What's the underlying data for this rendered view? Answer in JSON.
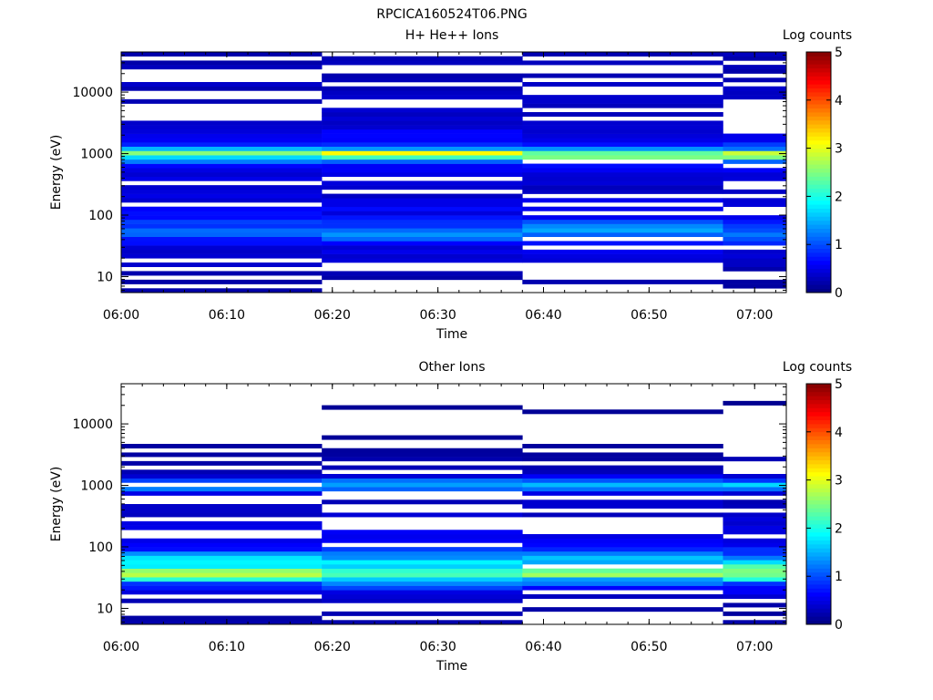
{
  "figure": {
    "title": "RPCICA160524T06.PNG"
  },
  "chart_data": [
    {
      "type": "heatmap",
      "title": "H+ He++ Ions",
      "xlabel": "Time",
      "ylabel": "Energy (eV)",
      "y_scale": "log",
      "xlim": [
        "06:00",
        "07:03"
      ],
      "ylim": [
        5.5,
        45000
      ],
      "x_ticks": [
        "06:00",
        "06:10",
        "06:20",
        "06:30",
        "06:40",
        "06:50",
        "07:00"
      ],
      "y_ticks": [
        "10",
        "100",
        "1000",
        "10000"
      ],
      "grid": false,
      "colorbar": {
        "title": "Log counts",
        "range": [
          0,
          5
        ],
        "ticks": [
          "0",
          "1",
          "2",
          "3",
          "4",
          "5"
        ],
        "colormap": "jet"
      },
      "time_bins_min": 19,
      "band_profile": [
        {
          "energy_eV": 8,
          "log_counts": 0.2
        },
        {
          "energy_eV": 15,
          "log_counts": 0.3
        },
        {
          "energy_eV": 30,
          "log_counts": 0.5
        },
        {
          "energy_eV": 55,
          "log_counts": 1.3
        },
        {
          "energy_eV": 100,
          "log_counts": 0.6
        },
        {
          "energy_eV": 300,
          "log_counts": 0.35
        },
        {
          "energy_eV": 700,
          "log_counts": 0.6
        },
        {
          "energy_eV": 1000,
          "log_counts": 2.9
        },
        {
          "energy_eV": 1300,
          "log_counts": 0.8
        },
        {
          "energy_eV": 3000,
          "log_counts": 0.35
        },
        {
          "energy_eV": 10000,
          "log_counts": 0.3
        },
        {
          "energy_eV": 40000,
          "log_counts": 0.25
        }
      ]
    },
    {
      "type": "heatmap",
      "title": "Other Ions",
      "xlabel": "Time",
      "ylabel": "Energy (eV)",
      "y_scale": "log",
      "xlim": [
        "06:00",
        "07:03"
      ],
      "ylim": [
        5.5,
        45000
      ],
      "x_ticks": [
        "06:00",
        "06:10",
        "06:20",
        "06:30",
        "06:40",
        "06:50",
        "07:00"
      ],
      "y_ticks": [
        "10",
        "100",
        "1000",
        "10000"
      ],
      "grid": false,
      "colorbar": {
        "title": "Log counts",
        "range": [
          0,
          5
        ],
        "ticks": [
          "0",
          "1",
          "2",
          "3",
          "4",
          "5"
        ],
        "colormap": "jet"
      },
      "time_bins_min": 19,
      "band_profile": [
        {
          "energy_eV": 8,
          "log_counts": 0.2
        },
        {
          "energy_eV": 15,
          "log_counts": 0.3
        },
        {
          "energy_eV": 25,
          "log_counts": 1.0
        },
        {
          "energy_eV": 38,
          "log_counts": 2.6
        },
        {
          "energy_eV": 55,
          "log_counts": 1.8
        },
        {
          "energy_eV": 100,
          "log_counts": 0.6
        },
        {
          "energy_eV": 300,
          "log_counts": 0.35
        },
        {
          "energy_eV": 700,
          "log_counts": 0.3
        },
        {
          "energy_eV": 1000,
          "log_counts": 1.6
        },
        {
          "energy_eV": 1500,
          "log_counts": 0.3
        },
        {
          "energy_eV": 5000,
          "log_counts": 0.12
        },
        {
          "energy_eV": 40000,
          "log_counts": 0.08
        }
      ]
    }
  ]
}
